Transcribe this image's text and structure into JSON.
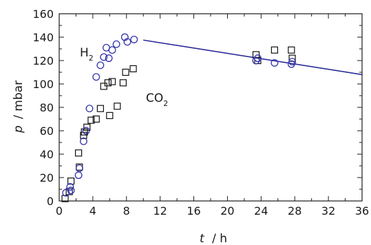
{
  "chart_data": {
    "type": "scatter",
    "title": "",
    "xlabel": {
      "var": "t",
      "unit": "h"
    },
    "ylabel": {
      "var": "p",
      "unit": "mbar"
    },
    "xlim": [
      0,
      36
    ],
    "ylim": [
      0,
      160
    ],
    "xticks": [
      0,
      4,
      8,
      12,
      16,
      20,
      24,
      28,
      32,
      36
    ],
    "yticks": [
      0,
      20,
      40,
      60,
      80,
      100,
      120,
      140,
      160
    ],
    "grid": false,
    "colors": {
      "h2": "#3333aa",
      "co2": "#111111",
      "fit": "#2a2a99"
    },
    "series": [
      {
        "name": "CO2",
        "label_main": "CO",
        "label_sub": "2",
        "marker": "square",
        "x": [
          0.7,
          1.2,
          1.4,
          2.3,
          2.4,
          2.9,
          3.0,
          3.3,
          3.8,
          4.4,
          4.9,
          5.3,
          5.8,
          6.0,
          6.3,
          6.9,
          7.6,
          7.9,
          8.8,
          23.4,
          23.6,
          25.6,
          27.6,
          27.7
        ],
        "y": [
          2,
          8,
          17,
          41,
          29,
          56,
          59,
          63,
          69,
          70,
          79,
          98,
          101,
          73,
          102,
          81,
          101,
          110,
          113,
          125,
          120,
          129,
          129,
          122
        ]
      },
      {
        "name": "H2",
        "label_main": "H",
        "label_sub": "2",
        "marker": "circle",
        "x": [
          0.8,
          1.3,
          1.4,
          2.3,
          2.4,
          2.9,
          3.2,
          3.6,
          4.4,
          4.9,
          5.3,
          5.6,
          5.9,
          6.3,
          6.8,
          7.8,
          8.1,
          8.9,
          23.4,
          23.6,
          25.6,
          27.6,
          27.7
        ],
        "y": [
          7,
          12,
          9,
          22,
          28,
          51,
          60,
          79,
          106,
          116,
          123,
          131,
          122,
          129,
          134,
          140,
          136,
          138,
          120,
          122,
          118,
          117,
          119
        ]
      }
    ],
    "fit_line": {
      "series": "H2",
      "x": [
        10,
        36
      ],
      "y": [
        137.5,
        108
      ]
    }
  }
}
